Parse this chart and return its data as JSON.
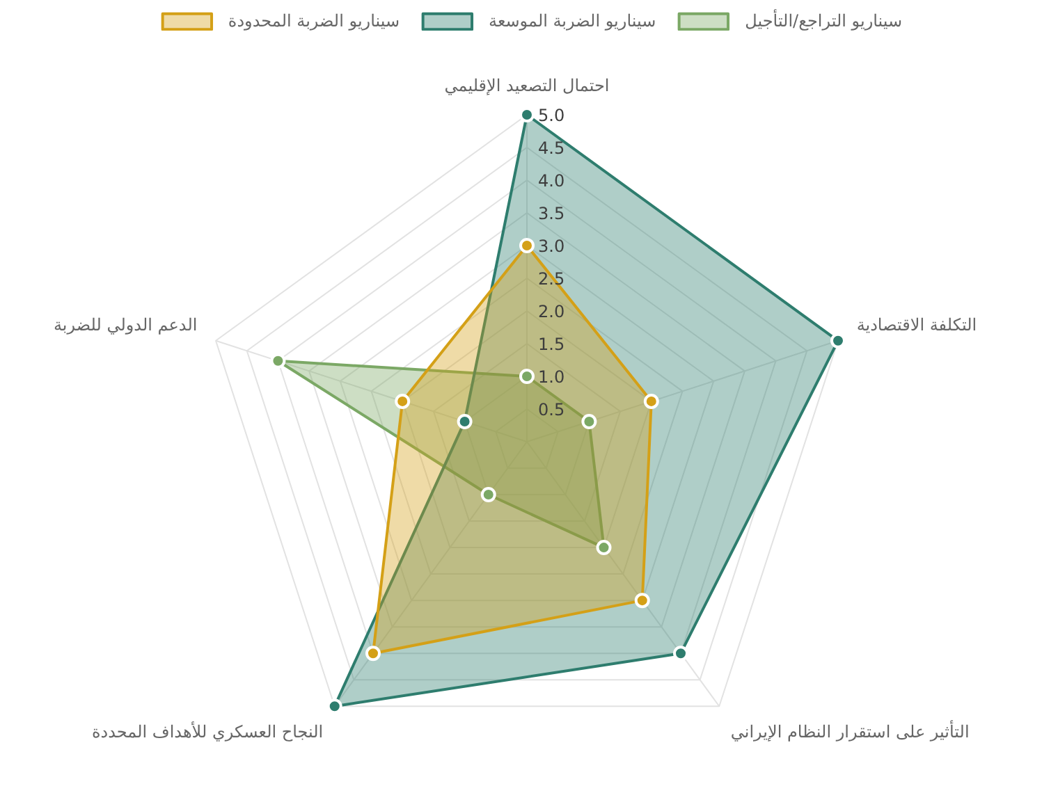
{
  "chart_data": {
    "type": "radar",
    "categories": [
      "احتمال التصعيد الإقليمي",
      "التكلفة الاقتصادية",
      "التأثير على استقرار النظام الإيراني",
      "النجاح العسكري للأهداف المحددة",
      "الدعم الدولي للضربة"
    ],
    "series": [
      {
        "name": "سيناريو الضربة المحدودة",
        "color": "#d4a017",
        "values": [
          3,
          2,
          3,
          4,
          2
        ]
      },
      {
        "name": "سيناريو الضربة الموسعة",
        "color": "#2e7d6e",
        "values": [
          5,
          5,
          4,
          5,
          1
        ]
      },
      {
        "name": "سيناريو التراجع/التأجيل",
        "color": "#7ba865",
        "values": [
          1,
          1,
          2,
          1,
          4
        ]
      }
    ],
    "ylim": [
      0,
      5
    ],
    "yticks": [
      0.5,
      {
        "value": 1,
        "label": "1.0"
      },
      1.5,
      {
        "value": 2,
        "label": "2.0"
      },
      2.5,
      {
        "value": 3,
        "label": "3.0"
      },
      3.5,
      {
        "value": 4,
        "label": "4.0"
      },
      4.5,
      {
        "value": 5,
        "label": "5.0"
      }
    ],
    "grid": true,
    "legend": "top",
    "marker": "circle",
    "line_style": "solid"
  }
}
